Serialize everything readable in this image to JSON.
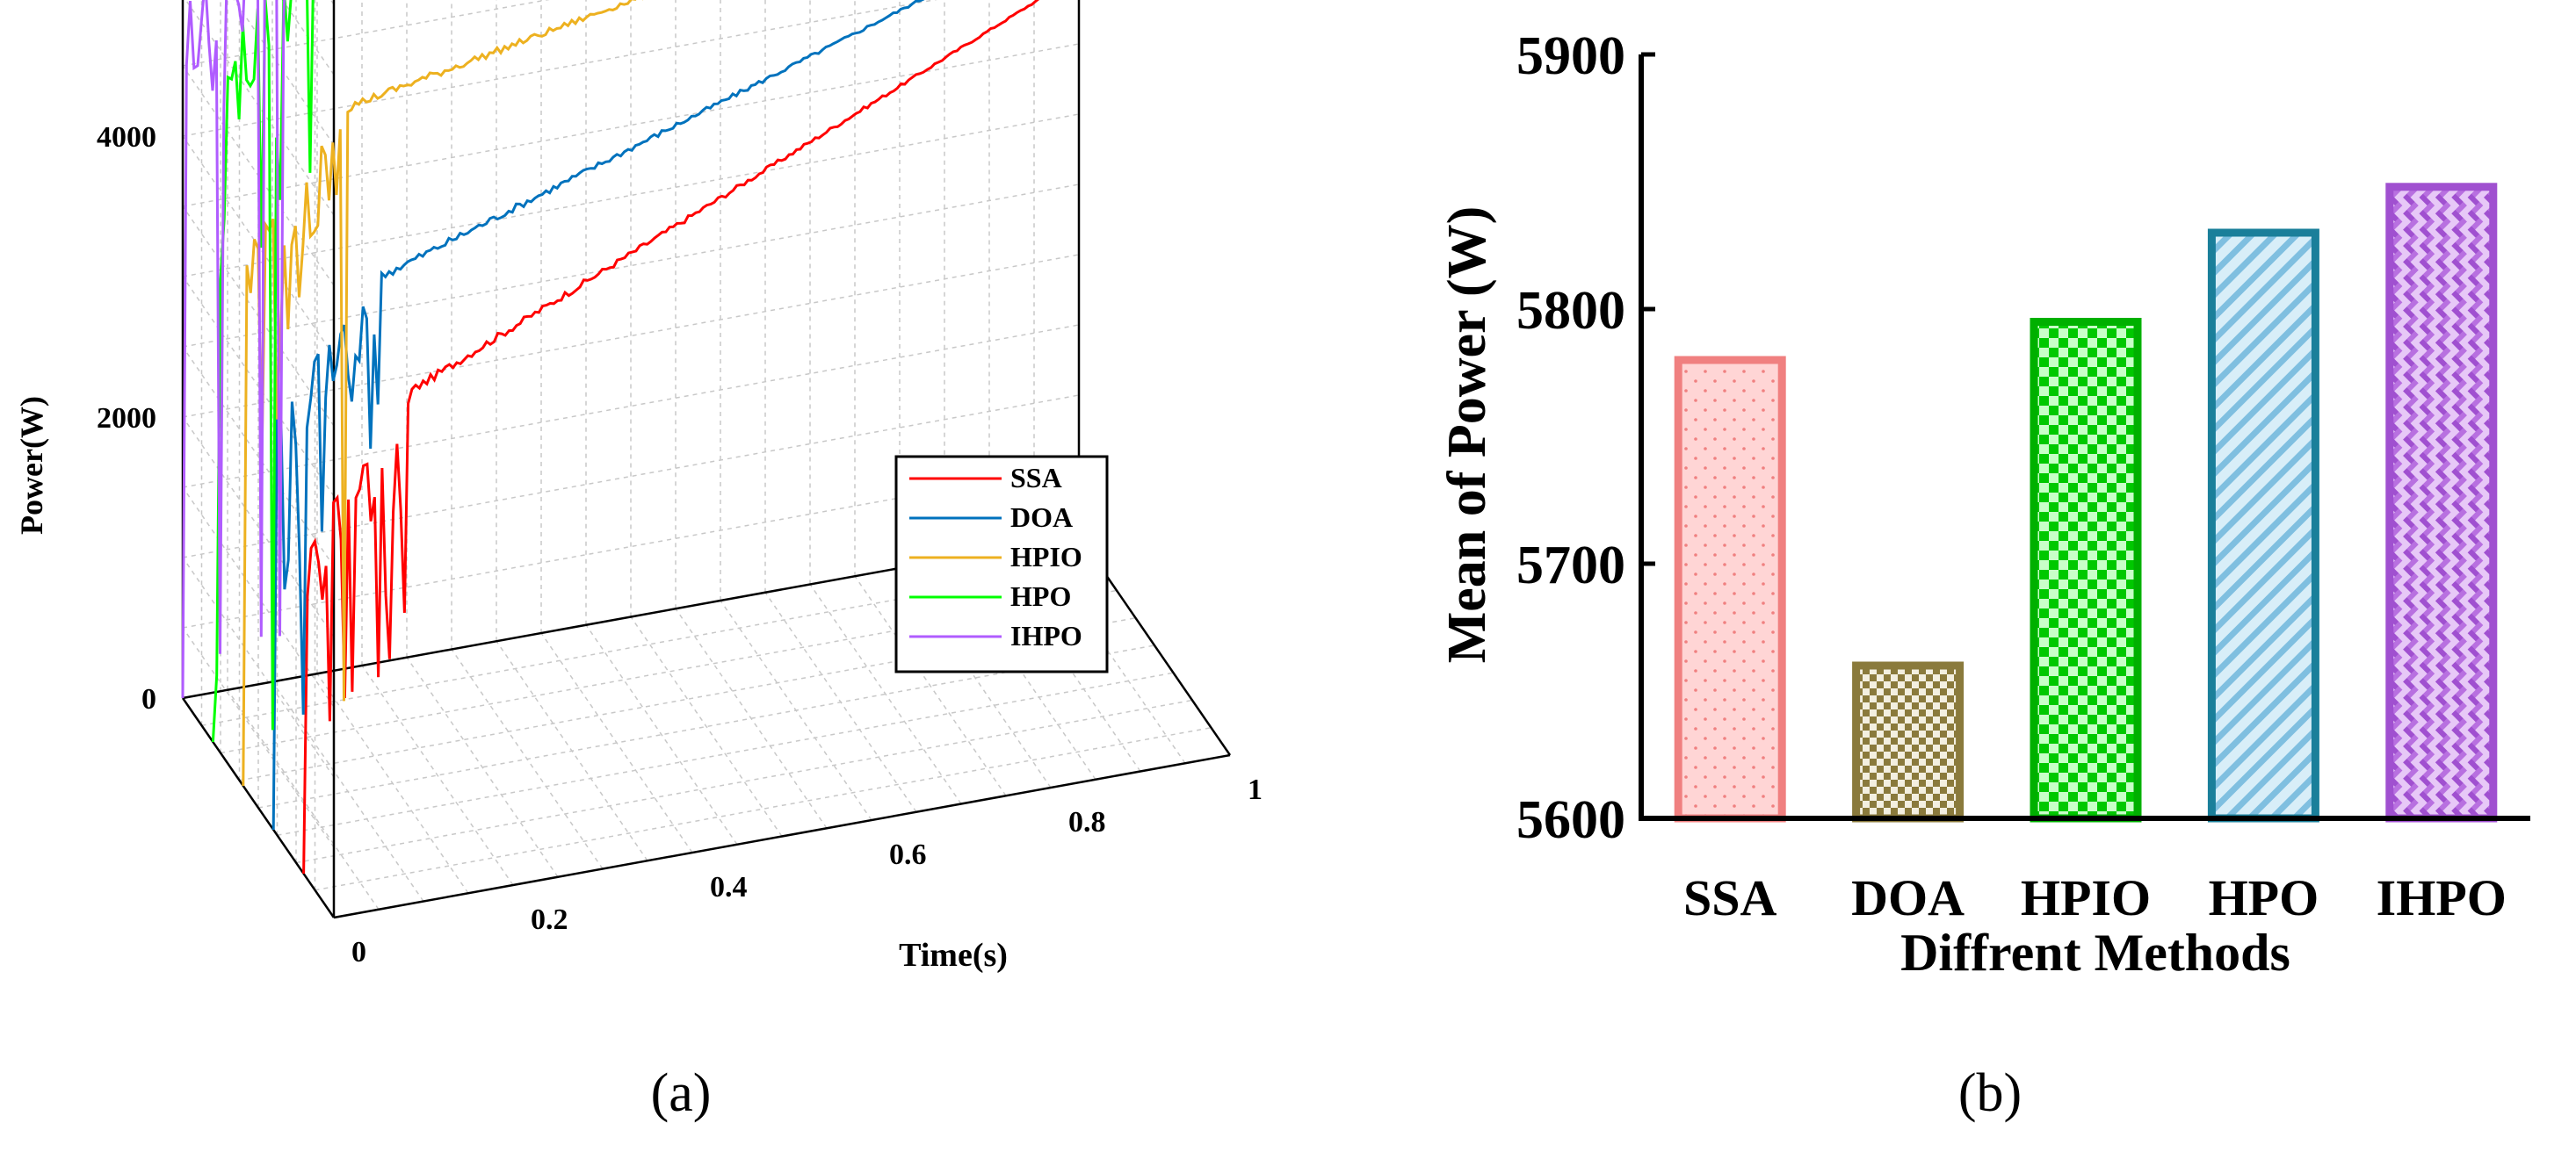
{
  "figure": {
    "panel_a_label": "(a)",
    "panel_b_label": "(b)"
  },
  "chart_data": [
    {
      "id": "a",
      "type": "line",
      "title": "",
      "xlabel": "Time(s)",
      "ylabel": "Power(W)",
      "zlabel": "",
      "xlim": [
        0,
        1
      ],
      "zlim": [
        0,
        6000
      ],
      "time_ticks": [
        "0",
        "0.2",
        "0.4",
        "0.6",
        "0.8",
        "1"
      ],
      "power_ticks": [
        "0",
        "2000",
        "4000",
        "6000"
      ],
      "grid": true,
      "legend_position": "right",
      "series": [
        {
          "name": "SSA",
          "color": "#ff0000",
          "settling_power": 3300,
          "final_power": 5780
        },
        {
          "name": "DOA",
          "color": "#0072bd",
          "settling_power": 3800,
          "final_power": 5660
        },
        {
          "name": "HPIO",
          "color": "#edb120",
          "settling_power": 4700,
          "final_power": 5795
        },
        {
          "name": "HPO",
          "color": "#00ff00",
          "settling_power": 5650,
          "final_power": 5830
        },
        {
          "name": "IHPO",
          "color": "#b05cff",
          "settling_power": 5800,
          "final_power": 5850
        }
      ]
    },
    {
      "id": "b",
      "type": "bar",
      "title": "",
      "xlabel": "Diffrent Methods",
      "ylabel": "Mean of Power (W)",
      "categories": [
        "SSA",
        "DOA",
        "HPIO",
        "HPO",
        "IHPO"
      ],
      "values": [
        5780,
        5660,
        5795,
        5830,
        5848
      ],
      "ylim": [
        5600,
        5900
      ],
      "yticks": [
        "5600",
        "5700",
        "5800",
        "5900"
      ],
      "series_colors": [
        {
          "fill": "#ffd5d5",
          "stroke": "#f08080"
        },
        {
          "fill": "#8a7a3c",
          "stroke": "#8a7a3c"
        },
        {
          "fill": "#00c800",
          "stroke": "#00b000"
        },
        {
          "fill": "#9fd0ea",
          "stroke": "#1a7f9a"
        },
        {
          "fill": "#c58be6",
          "stroke": "#a050d0"
        }
      ]
    }
  ]
}
